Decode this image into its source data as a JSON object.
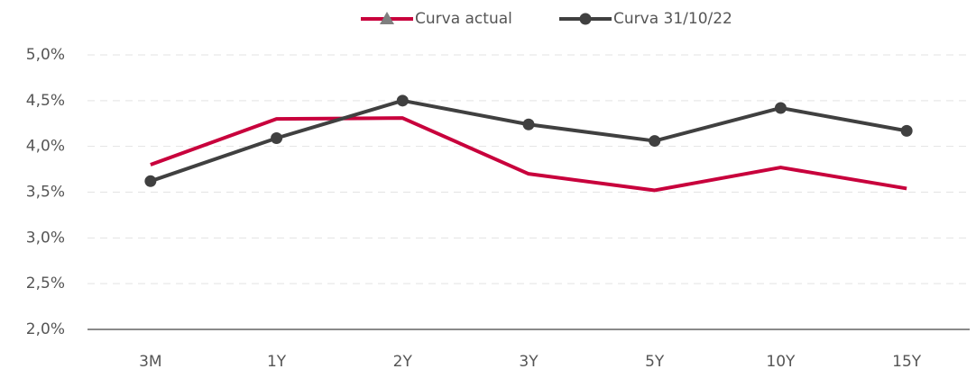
{
  "chart_data": {
    "type": "line",
    "categories": [
      "3M",
      "1Y",
      "2Y",
      "3Y",
      "5Y",
      "10Y",
      "15Y"
    ],
    "series": [
      {
        "name": "Curva actual",
        "color": "#c8003c",
        "marker": "none",
        "values": [
          3.8,
          4.3,
          4.31,
          3.7,
          3.52,
          3.77,
          3.54
        ]
      },
      {
        "name": "Curva 31/10/22",
        "color": "#404040",
        "marker": "circle",
        "values": [
          3.62,
          4.09,
          4.5,
          4.24,
          4.06,
          4.42,
          4.17
        ]
      }
    ],
    "ylim": [
      2.0,
      5.0
    ],
    "yticks": [
      {
        "value": 2.0,
        "label": "2,0%"
      },
      {
        "value": 2.5,
        "label": "2,5%"
      },
      {
        "value": 3.0,
        "label": "3,0%"
      },
      {
        "value": 3.5,
        "label": "3,5%"
      },
      {
        "value": 4.0,
        "label": "4,0%"
      },
      {
        "value": 4.5,
        "label": "4,5%"
      },
      {
        "value": 5.0,
        "label": "5,0%"
      }
    ],
    "grid": true,
    "legend": "top"
  }
}
